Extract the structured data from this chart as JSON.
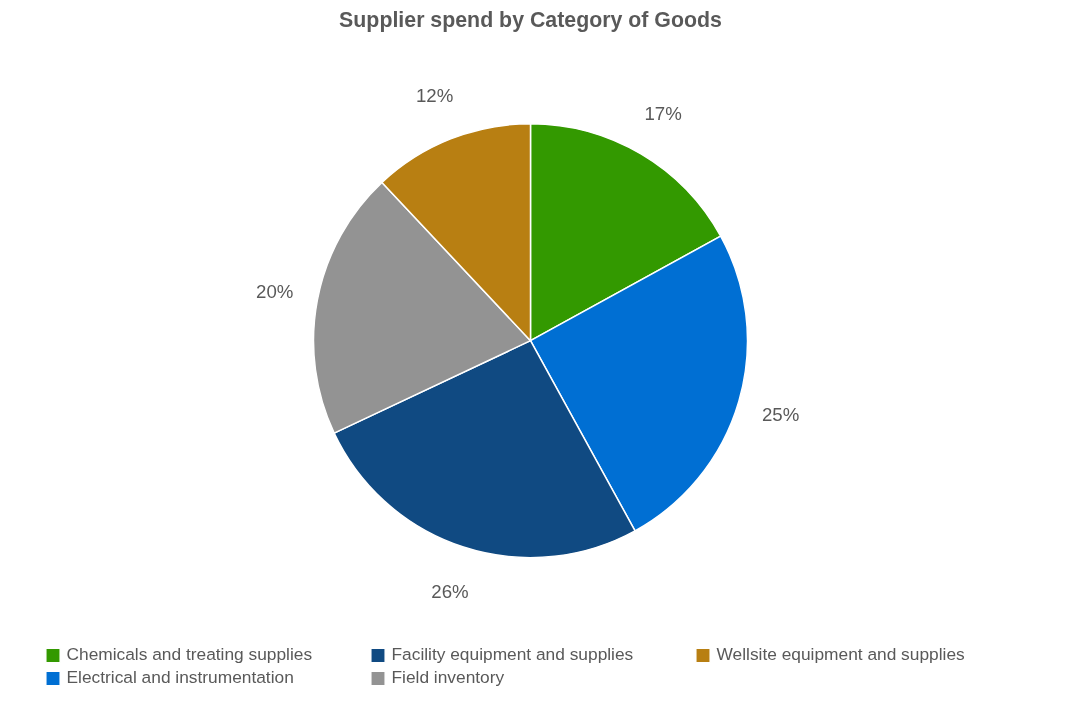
{
  "chart_data": {
    "type": "pie",
    "title": "Supplier spend by Category of Goods",
    "categories": [
      "Chemicals and treating supplies",
      "Electrical and instrumentation",
      "Facility equipment and supplies",
      "Field inventory",
      "Wellsite equipment and supplies"
    ],
    "values": [
      17,
      25,
      26,
      20,
      12
    ],
    "colors": [
      "#339900",
      "#006fd3",
      "#104a82",
      "#939393",
      "#b87f12"
    ],
    "value_labels": [
      "17%",
      "25%",
      "26%",
      "20%",
      "12%"
    ],
    "legend": "bottom"
  }
}
